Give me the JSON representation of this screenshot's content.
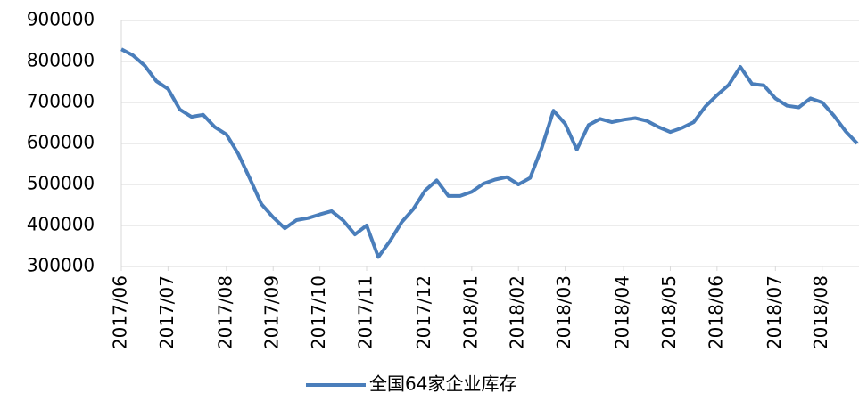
{
  "chart_data": {
    "type": "line",
    "categories": [
      "2017/06",
      null,
      null,
      null,
      "2017/07",
      null,
      null,
      null,
      null,
      "2017/08",
      null,
      null,
      null,
      "2017/09",
      null,
      null,
      null,
      "2017/10",
      null,
      null,
      null,
      "2017/11",
      null,
      null,
      null,
      null,
      "2017/12",
      null,
      null,
      null,
      "2018/01",
      null,
      null,
      null,
      "2018/02",
      null,
      null,
      null,
      "2018/03",
      null,
      null,
      null,
      null,
      "2018/04",
      null,
      null,
      null,
      "2018/05",
      null,
      null,
      null,
      "2018/06",
      null,
      null,
      null,
      null,
      "2018/07",
      null,
      null,
      null,
      "2018/08",
      null,
      null,
      null
    ],
    "series": [
      {
        "name": "全国64家企业库存",
        "color": "#4a7ebb",
        "values": [
          830000,
          815000,
          790000,
          752000,
          733000,
          683000,
          665000,
          670000,
          640000,
          622000,
          575000,
          515000,
          452000,
          420000,
          393000,
          413000,
          418000,
          427000,
          435000,
          412000,
          378000,
          400000,
          323000,
          362000,
          408000,
          440000,
          485000,
          510000,
          472000,
          472000,
          482000,
          502000,
          512000,
          518000,
          500000,
          516000,
          590000,
          680000,
          648000,
          585000,
          645000,
          660000,
          652000,
          658000,
          662000,
          655000,
          640000,
          628000,
          638000,
          652000,
          690000,
          718000,
          743000,
          787000,
          745000,
          742000,
          710000,
          692000,
          688000,
          710000,
          700000,
          668000,
          630000,
          600000
        ]
      }
    ],
    "ylim": [
      300000,
      900000
    ],
    "yticks": [
      300000,
      400000,
      500000,
      600000,
      700000,
      800000,
      900000
    ],
    "grid": true,
    "legend": "bottom"
  }
}
